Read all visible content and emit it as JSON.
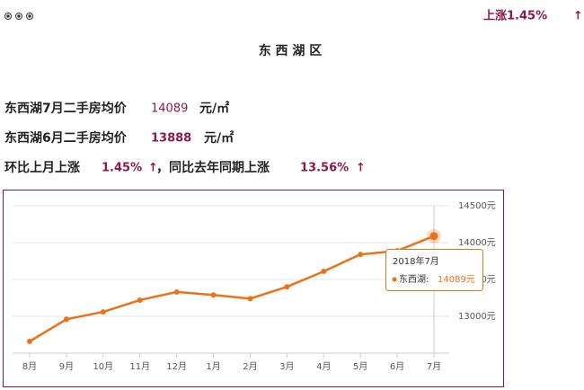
{
  "header": {
    "change_text": "上涨1.45%",
    "arrow": "↑",
    "title": "东 西 湖 区"
  },
  "summary": {
    "line1": {
      "label": "东西湖7月二手房均价",
      "value": 14089,
      "unit": "元/㎡"
    },
    "line2": {
      "label": "东西湖6月二手房均价",
      "value": 13888,
      "unit": "元/㎡"
    },
    "line3": {
      "mom_label": "环比上月上涨",
      "mom_value": "1.45%",
      "mom_arrow": "↑",
      "yoy_label": "，同比去年同期上涨",
      "yoy_value": "13.56%",
      "yoy_arrow": "↑"
    }
  },
  "chart_data": {
    "type": "line",
    "categories": [
      "8月",
      "9月",
      "10月",
      "11月",
      "12月",
      "1月",
      "2月",
      "3月",
      "4月",
      "5月",
      "6月",
      "7月"
    ],
    "series": [
      {
        "name": "东西湖:",
        "color": "#e8731a",
        "values": [
          12660,
          12960,
          13060,
          13220,
          13330,
          13290,
          13240,
          13400,
          13610,
          13840,
          13888,
          14089
        ]
      }
    ],
    "ylim": [
      12500,
      14500
    ],
    "yticks": [
      {
        "value": 13000,
        "label": "13000元"
      },
      {
        "value": 13500,
        "label": "13500元"
      },
      {
        "value": 14000,
        "label": "14000元"
      },
      {
        "value": 14500,
        "label": "14500元"
      }
    ],
    "grid": true,
    "tooltip": {
      "title": "2018年7月",
      "value_label": "14089元"
    }
  }
}
